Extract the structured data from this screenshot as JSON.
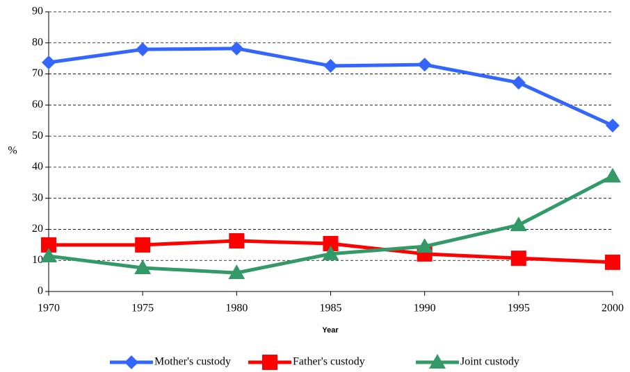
{
  "chart_data": {
    "type": "line",
    "x_label": "Year",
    "y_label": "%",
    "x": [
      1970,
      1975,
      1980,
      1985,
      1990,
      1995,
      2000
    ],
    "xlim": [
      1970,
      2000
    ],
    "xticks": [
      1970,
      1975,
      1980,
      1985,
      1990,
      1995,
      2000
    ],
    "ylim": [
      0,
      90
    ],
    "yticks": [
      0,
      10,
      20,
      30,
      40,
      50,
      60,
      70,
      80,
      90
    ],
    "grid": true,
    "legend": "bottom",
    "series": [
      {
        "name": "Mother's custody",
        "color": "#3366ff",
        "marker": "diamond",
        "values": [
          73.7,
          77.9,
          78.2,
          72.6,
          73.0,
          67.2,
          53.4
        ]
      },
      {
        "name": "Father's custody",
        "color": "#ff0000",
        "marker": "square",
        "values": [
          15.0,
          15.0,
          16.3,
          15.4,
          12.1,
          10.7,
          9.4
        ]
      },
      {
        "name": "Joint custody",
        "color": "#339966",
        "marker": "triangle",
        "values": [
          11.4,
          7.6,
          6.0,
          12.1,
          14.5,
          21.4,
          37.1
        ]
      }
    ]
  }
}
